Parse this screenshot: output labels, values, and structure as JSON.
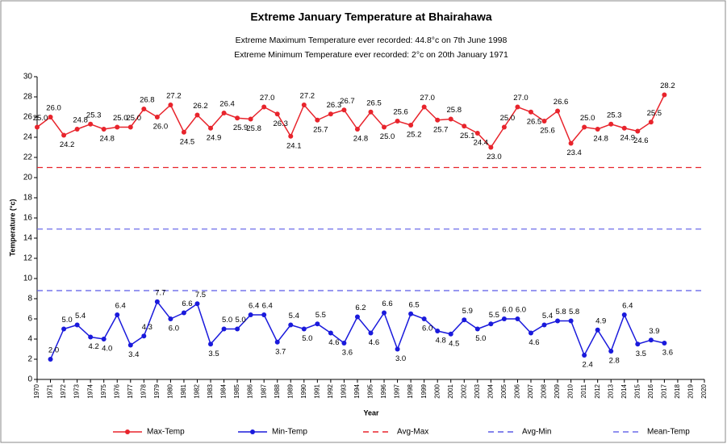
{
  "chart_data": {
    "type": "line",
    "title": "Extreme  January Temperature at Bhairahawa",
    "subtitle": [
      "Extreme Maximum Temperature ever recorded: 44.8°c on 7th June 1998",
      "Extreme Minimum Temperature ever recorded: 2°c on  20th January  1971"
    ],
    "x_label": "Year",
    "y_label": "Temperature (°c)",
    "xlim": [
      1970,
      2020
    ],
    "xticks": [
      1970,
      1971,
      1972,
      1973,
      1974,
      1975,
      1976,
      1977,
      1978,
      1979,
      1980,
      1981,
      1982,
      1983,
      1984,
      1985,
      1986,
      1987,
      1988,
      1989,
      1990,
      1991,
      1992,
      1993,
      1994,
      1995,
      1996,
      1997,
      1998,
      1999,
      2000,
      2001,
      2002,
      2003,
      2004,
      2005,
      2006,
      2007,
      2008,
      2009,
      2010,
      2011,
      2012,
      2013,
      2014,
      2015,
      2016,
      2017,
      2018,
      2019,
      2020
    ],
    "ylim": [
      0,
      30
    ],
    "yticks": [
      0,
      2,
      4,
      6,
      8,
      10,
      12,
      14,
      16,
      18,
      20,
      22,
      24,
      26,
      28,
      30
    ],
    "series": [
      {
        "name": "Max-Temp",
        "color": "#e8242c",
        "x": [
          1970,
          1971,
          1972,
          1973,
          1974,
          1975,
          1976,
          1977,
          1978,
          1979,
          1980,
          1981,
          1982,
          1983,
          1984,
          1985,
          1986,
          1987,
          1988,
          1989,
          1990,
          1991,
          1992,
          1993,
          1994,
          1995,
          1996,
          1997,
          1998,
          1999,
          2000,
          2001,
          2002,
          2003,
          2004,
          2005,
          2006,
          2007,
          2008,
          2009,
          2010,
          2011,
          2012,
          2013,
          2014,
          2015,
          2016,
          2017
        ],
        "values": [
          25,
          26,
          24.2,
          24.8,
          25.3,
          24.8,
          25,
          25,
          26.8,
          26,
          27.2,
          24.5,
          26.2,
          24.9,
          26.4,
          25.9,
          25.8,
          27,
          26.3,
          24.1,
          27.2,
          25.7,
          26.3,
          26.7,
          24.8,
          26.5,
          25,
          25.6,
          25.2,
          27,
          25.7,
          25.8,
          25.1,
          24.4,
          23,
          25,
          27,
          26.5,
          25.6,
          26.6,
          23.4,
          25,
          24.8,
          25.3,
          24.9,
          24.6,
          25.5,
          28.2
        ],
        "value_labels": [
          "25.0",
          "26.0",
          "24.2",
          "24.8",
          "25.3",
          "24.8",
          "25.0",
          "25.0",
          "26.8",
          "26.0",
          "27.2",
          "24.5",
          "26.2",
          "24.9",
          "26.4",
          "25.9",
          "25.8",
          "27.0",
          "26.3",
          "24.1",
          "27.2",
          "25.7",
          "26.3",
          "26.7",
          "24.8",
          "26.5",
          "25.0",
          "25.6",
          "25.2",
          "27.0",
          "25.7",
          "25.8",
          "25.1",
          "24.4",
          "23.0",
          "25.0",
          "27.0",
          "26.5",
          "25.6",
          "26.6",
          "23.4",
          "25.0",
          "24.8",
          "25.3",
          "24.9",
          "24.6",
          "25.5",
          "28.2"
        ]
      },
      {
        "name": "Min-Temp",
        "color": "#1a1adc",
        "x": [
          1971,
          1972,
          1973,
          1974,
          1975,
          1976,
          1977,
          1978,
          1979,
          1980,
          1981,
          1982,
          1983,
          1984,
          1985,
          1986,
          1987,
          1988,
          1989,
          1990,
          1991,
          1992,
          1993,
          1994,
          1995,
          1996,
          1997,
          1998,
          1999,
          2000,
          2001,
          2002,
          2003,
          2004,
          2005,
          2006,
          2007,
          2008,
          2009,
          2010,
          2011,
          2012,
          2013,
          2014,
          2015,
          2016,
          2017
        ],
        "values": [
          2,
          5,
          5.4,
          4.2,
          4,
          6.4,
          3.4,
          4.3,
          7.7,
          6,
          6.6,
          7.5,
          3.5,
          5,
          5,
          6.4,
          6.4,
          3.7,
          5.4,
          5,
          5.5,
          4.6,
          3.6,
          6.2,
          4.6,
          6.6,
          3,
          6.5,
          6,
          4.8,
          4.5,
          5.9,
          5,
          5.5,
          6,
          6,
          4.6,
          5.4,
          5.8,
          5.8,
          2.4,
          4.9,
          2.8,
          6.4,
          3.5,
          3.9,
          3.6
        ],
        "value_labels": [
          "2.0",
          "5.0",
          "5.4",
          "4.2",
          "4.0",
          "6.4",
          "3.4",
          "4.3",
          "7.7",
          "6.0",
          "6.6",
          "7.5",
          "3.5",
          "5.0",
          "5.0",
          "6.4",
          "6.4",
          "3.7",
          "5.4",
          "5.0",
          "5.5",
          "4.6",
          "3.6",
          "6.2",
          "4.6",
          "6.6",
          "3.0",
          "6.5",
          "6.0",
          "4.8",
          "4.5",
          "5.9",
          "5.0",
          "5.5",
          "6.0",
          "6.0",
          "4.6",
          "5.4",
          "5.8",
          "5.8",
          "2.4",
          "4.9",
          "2.8",
          "6.4",
          "3.5",
          "3.9",
          "3.6"
        ]
      }
    ],
    "reference_lines": [
      {
        "name": "Avg-Max",
        "color": "#e8242c",
        "value": 21
      },
      {
        "name": "Avg-Min",
        "color": "#5a5ae6",
        "value": 8.8
      },
      {
        "name": "Mean-Temp",
        "color": "#6c6cea",
        "value": 14.9
      }
    ]
  }
}
